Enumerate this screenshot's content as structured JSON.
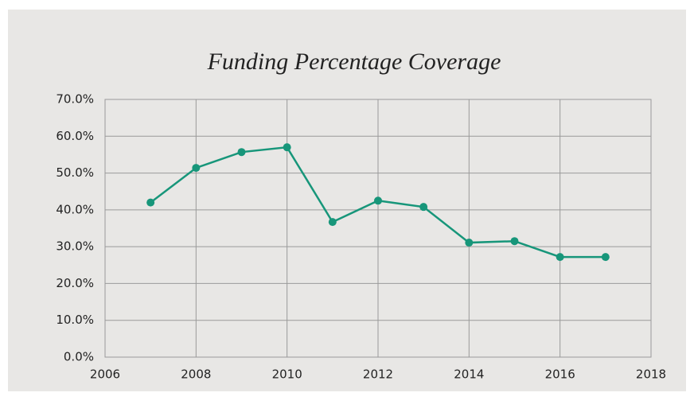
{
  "chart_data": {
    "type": "line",
    "title": "Funding Percentage Coverage",
    "x": [
      2007,
      2008,
      2009,
      2010,
      2011,
      2012,
      2013,
      2014,
      2015,
      2016,
      2017
    ],
    "series": [
      {
        "name": "Funding Percentage Coverage",
        "color": "#17967a",
        "values": [
          42.0,
          51.4,
          55.7,
          57.0,
          36.7,
          42.5,
          40.8,
          31.1,
          31.5,
          27.2,
          27.2
        ]
      }
    ],
    "xlim": [
      2006,
      2018
    ],
    "xticks": [
      2006,
      2008,
      2010,
      2012,
      2014,
      2016,
      2018
    ],
    "ylim": [
      0,
      70
    ],
    "yticks": [
      {
        "value": 0,
        "label": "0.0%"
      },
      {
        "value": 10,
        "label": "10.0%"
      },
      {
        "value": 20,
        "label": "20.0%"
      },
      {
        "value": 30,
        "label": "30.0%"
      },
      {
        "value": 40,
        "label": "40.0%"
      },
      {
        "value": 50,
        "label": "50.0%"
      },
      {
        "value": 60,
        "label": "60.0%"
      },
      {
        "value": 70,
        "label": "70.0%"
      }
    ],
    "grid": true
  }
}
